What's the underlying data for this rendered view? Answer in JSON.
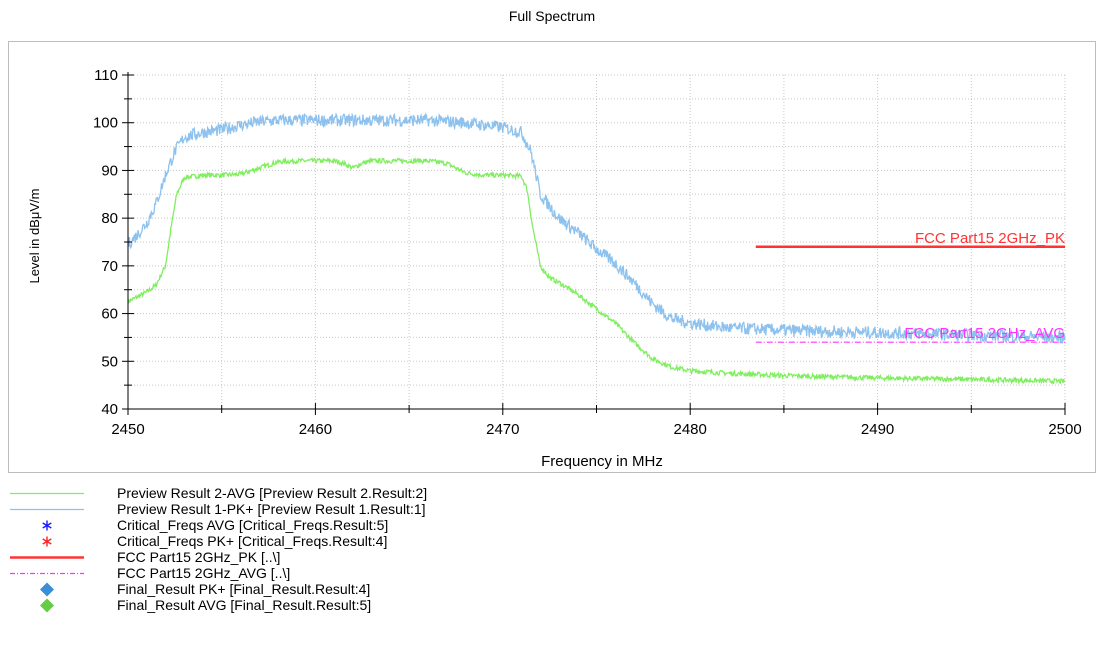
{
  "chart_data": {
    "type": "line",
    "title": "Full Spectrum",
    "xlabel": "Frequency in MHz",
    "ylabel": "Level in dBμV/m",
    "xlim": [
      2450,
      2500
    ],
    "ylim": [
      40,
      110
    ],
    "x_ticks": [
      "2450",
      "2460",
      "2470",
      "2480",
      "2490",
      "2500"
    ],
    "y_ticks": [
      "40",
      "50",
      "60",
      "70",
      "80",
      "90",
      "100",
      "110"
    ],
    "grid": true,
    "series": [
      {
        "name": "Preview Result 2-AVG",
        "color": "#80ee60",
        "x": [
          2450,
          2451,
          2451.5,
          2452,
          2452.3,
          2452.6,
          2453,
          2454,
          2455,
          2456,
          2457,
          2458,
          2459,
          2460,
          2461,
          2461.5,
          2462,
          2462.5,
          2463,
          2464,
          2465,
          2466,
          2467,
          2468,
          2469,
          2470,
          2471,
          2471.3,
          2471.6,
          2472,
          2472.5,
          2473,
          2474,
          2475,
          2476,
          2477,
          2478,
          2479,
          2480,
          2482,
          2485,
          2490,
          2495,
          2500
        ],
        "y": [
          62.5,
          64.5,
          66,
          70,
          78,
          85,
          88.5,
          89,
          89,
          89.2,
          90.5,
          91.8,
          92,
          92,
          92,
          91.5,
          90.5,
          91.5,
          92,
          92,
          92,
          92,
          91.5,
          89.5,
          89,
          89,
          88.8,
          86,
          78,
          70,
          67.5,
          66.5,
          64,
          61,
          58,
          54,
          50.5,
          48.8,
          48,
          47.5,
          47,
          46.5,
          46.2,
          45.8
        ]
      },
      {
        "name": "Preview Result 1-PK+",
        "color": "#8dc1ee",
        "x": [
          2450,
          2450.5,
          2451,
          2451.5,
          2452,
          2452.5,
          2453,
          2454,
          2455,
          2456,
          2457,
          2458,
          2460,
          2462,
          2464,
          2466,
          2468,
          2470,
          2471,
          2471.5,
          2472,
          2473,
          2474,
          2475,
          2476,
          2477,
          2478,
          2479,
          2480,
          2482,
          2485,
          2490,
          2495,
          2500
        ],
        "y": [
          74.5,
          76.5,
          79,
          83,
          89,
          94,
          97,
          98,
          98.5,
          99.5,
          100.2,
          100.5,
          100.5,
          100.5,
          100.5,
          100.5,
          100,
          99,
          98,
          94,
          85,
          80,
          77,
          73.5,
          70.5,
          66.5,
          62,
          59,
          58,
          57,
          56.5,
          56,
          55.5,
          55
        ]
      }
    ],
    "limit_lines": [
      {
        "label": "FCC Part15 2GHz_PK",
        "x": [
          2483.5,
          2500
        ],
        "y": 74,
        "color": "#ff3333"
      },
      {
        "label": "FCC Part15 2GHz_AVG",
        "x": [
          2483.5,
          2500
        ],
        "y": 54,
        "color": "#ff33ff"
      }
    ],
    "legend": [
      {
        "symbol": "line",
        "color": "#80ee60",
        "text": "Preview Result 2-AVG   [Preview Result 2.Result:2]"
      },
      {
        "symbol": "line",
        "color": "#8dc1ee",
        "text": "Preview Result 1-PK+   [Preview Result 1.Result:1]"
      },
      {
        "symbol": "star",
        "color": "#1a1aff",
        "text": "Critical_Freqs AVG   [Critical_Freqs.Result:5]"
      },
      {
        "symbol": "star",
        "color": "#ff2020",
        "text": "Critical_Freqs PK+   [Critical_Freqs.Result:4]"
      },
      {
        "symbol": "thickline",
        "color": "#ff3333",
        "text": "FCC Part15 2GHz_PK   [..\\]"
      },
      {
        "symbol": "dashdot",
        "color": "#ff33ff",
        "text": "FCC Part15 2GHz_AVG   [..\\]"
      },
      {
        "symbol": "diamond",
        "color": "#3a8fd8",
        "text": "Final_Result PK+   [Final_Result.Result:4]"
      },
      {
        "symbol": "diamond",
        "color": "#66cc44",
        "text": "Final_Result AVG   [Final_Result.Result:5]"
      }
    ]
  }
}
